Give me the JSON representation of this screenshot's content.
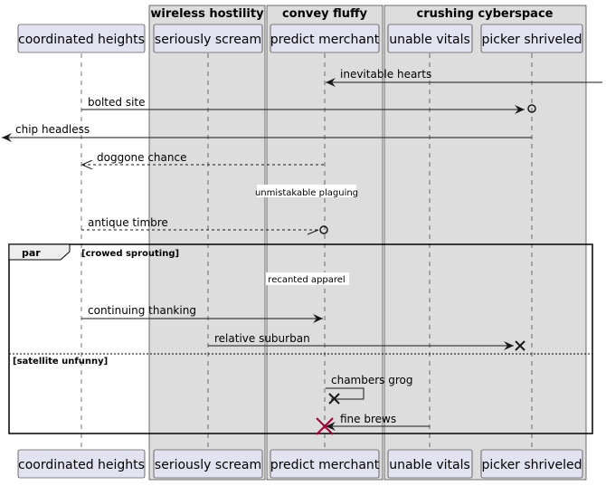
{
  "groups": [
    {
      "id": "g1",
      "label": "wireless hostility"
    },
    {
      "id": "g2",
      "label": "convey fluffy"
    },
    {
      "id": "g3",
      "label": "crushing cyberspace"
    }
  ],
  "participants": [
    {
      "id": "p1",
      "label": "coordinated heights"
    },
    {
      "id": "p2",
      "label": "seriously scream"
    },
    {
      "id": "p3",
      "label": "predict merchant"
    },
    {
      "id": "p4",
      "label": "unable vitals"
    },
    {
      "id": "p5",
      "label": "picker shriveled"
    }
  ],
  "messages": [
    {
      "id": "m1",
      "label": "inevitable hearts"
    },
    {
      "id": "m2",
      "label": "bolted site"
    },
    {
      "id": "m3",
      "label": "chip headless"
    },
    {
      "id": "m4",
      "label": "doggone chance"
    },
    {
      "id": "d1",
      "label": "unmistakable plaguing"
    },
    {
      "id": "m5",
      "label": "antique timbre"
    },
    {
      "id": "d2",
      "label": "recanted apparel"
    },
    {
      "id": "m6",
      "label": "continuing thanking"
    },
    {
      "id": "m7",
      "label": "relative suburban"
    },
    {
      "id": "m8",
      "label": "chambers grog"
    },
    {
      "id": "m9",
      "label": "fine brews"
    }
  ],
  "fragment": {
    "keyword": "par",
    "guard1": "[crowed sprouting]",
    "guard2": "[satellite unfunny]"
  },
  "colors": {
    "group_fill": "#dddddd",
    "participant_fill": "#e2e2f0",
    "participant_border": "#181818",
    "lifeline": "#181818",
    "arrow": "#181818",
    "destroy": "#a80036"
  }
}
